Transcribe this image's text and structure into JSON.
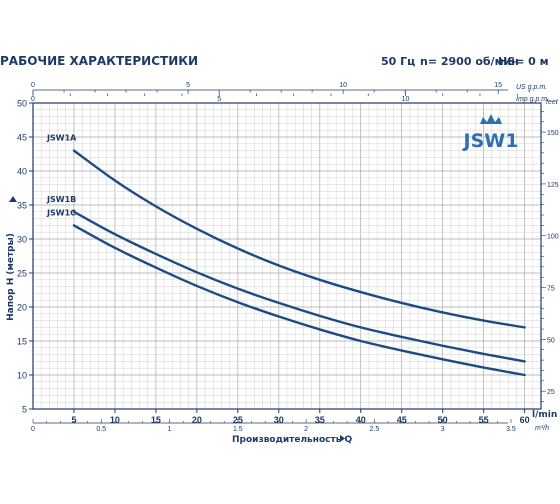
{
  "header": {
    "title": "РАБОЧИЕ ХАРАКТЕРИСТИКИ",
    "frequency": "50 Гц",
    "speed": "n= 2900 об/мин",
    "hs": "HS= 0 м"
  },
  "logo_text": "JSW1",
  "colors": {
    "primary": "#1f3a66",
    "curve": "#1d4b82",
    "grid": "#c8c8c8",
    "grid_major": "#a9a9a9",
    "logo": "#2e6fb4"
  },
  "chart_data": {
    "type": "line",
    "xlabel": "Производительность Q",
    "ylabel": "Напор H (метры)",
    "x_unit": "l/min",
    "y_unit": "",
    "xlim": [
      0,
      62
    ],
    "ylim": [
      5,
      50
    ],
    "x_ticks": [
      5,
      10,
      15,
      20,
      25,
      30,
      35,
      40,
      45,
      50,
      55,
      60
    ],
    "y_ticks": [
      5,
      10,
      15,
      20,
      25,
      30,
      35,
      40,
      45,
      50
    ],
    "grid": true,
    "secondary_axes": {
      "top_us": {
        "unit": "US g.p.m.",
        "ticks": [
          0,
          5,
          10,
          15
        ]
      },
      "top_imp": {
        "unit": "Imp g.p.m.",
        "ticks": [
          0,
          5,
          10
        ]
      },
      "bottom_m3h": {
        "unit": "m³/h",
        "ticks": [
          0,
          0.5,
          1,
          1.5,
          2,
          2.5,
          3,
          3.5
        ]
      },
      "right_feet": {
        "unit": "feet",
        "ticks": [
          25,
          50,
          75,
          100,
          125,
          150
        ]
      }
    },
    "series": [
      {
        "name": "JSW1A",
        "x": [
          5,
          10,
          15,
          20,
          25,
          30,
          35,
          40,
          45,
          50,
          55,
          60
        ],
        "y": [
          43,
          38.6,
          34.8,
          31.5,
          28.6,
          26.1,
          24,
          22.2,
          20.6,
          19.2,
          18,
          17
        ]
      },
      {
        "name": "JSW1B",
        "x": [
          5,
          10,
          15,
          20,
          25,
          30,
          35,
          40,
          45,
          50,
          55,
          60
        ],
        "y": [
          34,
          30.7,
          27.8,
          25.1,
          22.7,
          20.6,
          18.7,
          17,
          15.6,
          14.3,
          13.1,
          12
        ]
      },
      {
        "name": "JSW1C",
        "x": [
          5,
          10,
          15,
          20,
          25,
          30,
          35,
          40,
          45,
          50,
          55,
          60
        ],
        "y": [
          32,
          28.7,
          25.8,
          23.1,
          20.7,
          18.6,
          16.7,
          15,
          13.6,
          12.3,
          11.1,
          10
        ]
      }
    ]
  }
}
